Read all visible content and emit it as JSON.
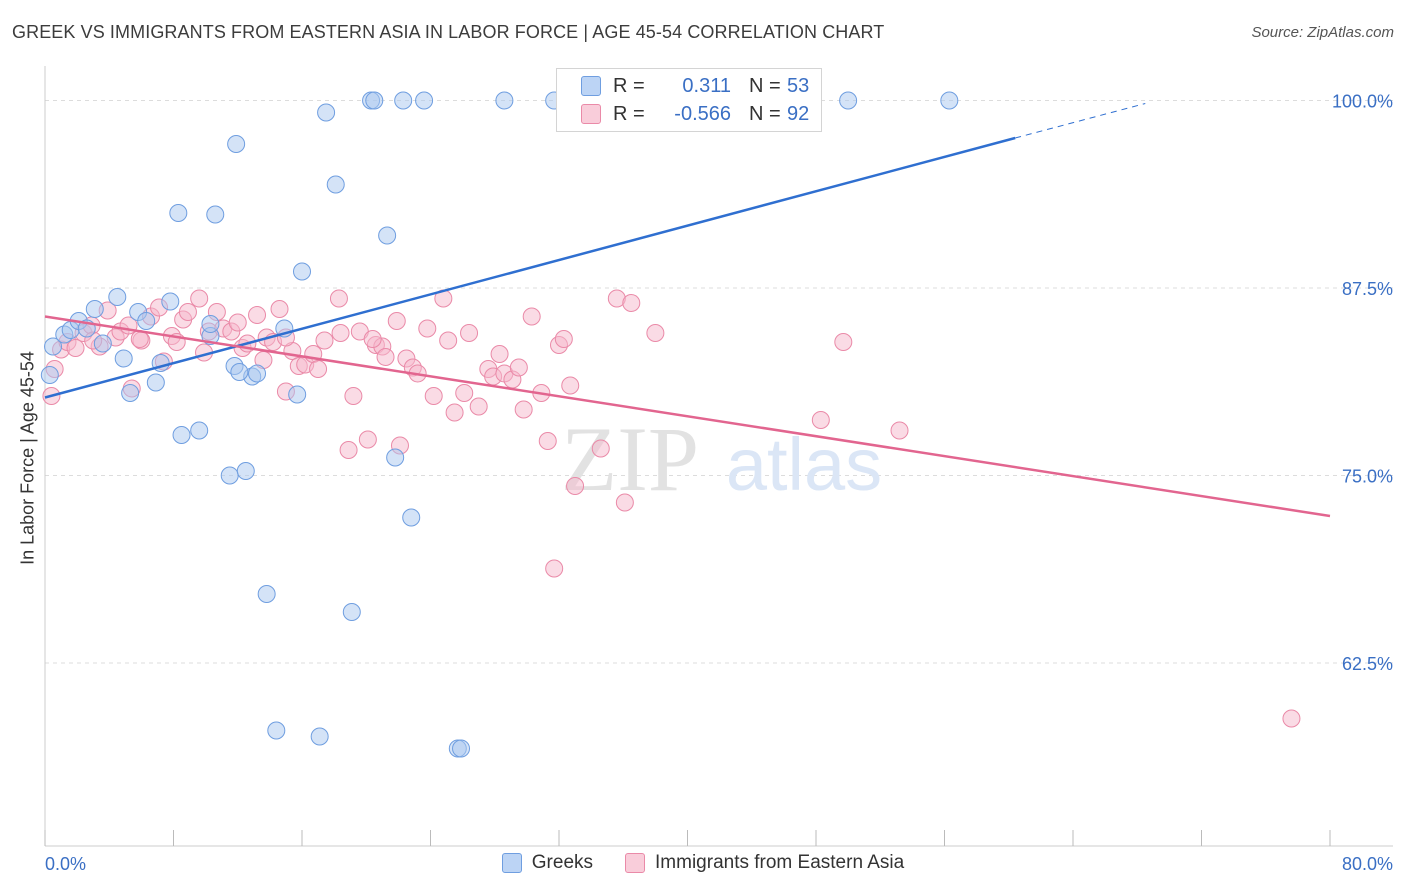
{
  "header": {
    "title": "GREEK VS IMMIGRANTS FROM EASTERN ASIA IN LABOR FORCE | AGE 45-54 CORRELATION CHART",
    "source": "Source: ZipAtlas.com"
  },
  "legend": {
    "rows": [
      {
        "r_label": "R =",
        "r_value": "0.311",
        "n_label": "N =",
        "n_value": "53",
        "color": "#a9c7f0"
      },
      {
        "r_label": "R =",
        "r_value": "-0.566",
        "n_label": "N =",
        "n_value": "92",
        "color": "#f6b8cb"
      }
    ],
    "bottom": [
      {
        "label": "Greeks",
        "color": "#a9c7f0"
      },
      {
        "label": "Immigrants from Eastern Asia",
        "color": "#f6b8cb"
      }
    ]
  },
  "watermark": {
    "zip": "ZIP",
    "atlas": "atlas"
  },
  "chart_data": {
    "type": "scatter",
    "title": "GREEK VS IMMIGRANTS FROM EASTERN ASIA IN LABOR FORCE | AGE 45-54 CORRELATION CHART",
    "ylabel": "In Labor Force | Age 45-54",
    "xlabel": "",
    "xlim": [
      0,
      80
    ],
    "ylim": [
      50.3,
      102.3
    ],
    "x_tick_labels": [
      "0.0%",
      "80.0%"
    ],
    "y_ticks": [
      62.5,
      75.0,
      87.5,
      100.0
    ],
    "y_tick_labels": [
      "62.5%",
      "75.0%",
      "87.5%",
      "100.0%"
    ],
    "grid": true,
    "legend_position": "top-center",
    "series": [
      {
        "name": "Greeks",
        "color": "#a9c7f0",
        "edge": "#6f9ee0",
        "line_color": "#2f6fd0",
        "trend": {
          "x0": 0,
          "y0": 80.2,
          "x1": 60.4,
          "y1": 97.5,
          "dash_to_x": 68.5,
          "dash_to_y": 99.8
        },
        "points": [
          [
            0.5,
            83.6
          ],
          [
            1.2,
            84.4
          ],
          [
            1.6,
            84.7
          ],
          [
            2.1,
            85.3
          ],
          [
            2.6,
            84.8
          ],
          [
            3.1,
            86.1
          ],
          [
            3.6,
            83.8
          ],
          [
            4.5,
            86.9
          ],
          [
            4.9,
            82.8
          ],
          [
            5.3,
            80.5
          ],
          [
            5.8,
            85.9
          ],
          [
            6.3,
            85.3
          ],
          [
            6.9,
            81.2
          ],
          [
            7.2,
            82.5
          ],
          [
            7.8,
            86.6
          ],
          [
            8.3,
            92.5
          ],
          [
            8.5,
            77.7
          ],
          [
            9.6,
            78.0
          ],
          [
            10.3,
            84.3
          ],
          [
            10.3,
            85.1
          ],
          [
            10.6,
            92.4
          ],
          [
            11.5,
            75.0
          ],
          [
            11.8,
            82.3
          ],
          [
            11.9,
            97.1
          ],
          [
            12.5,
            75.3
          ],
          [
            12.9,
            81.6
          ],
          [
            13.2,
            81.8
          ],
          [
            13.8,
            67.1
          ],
          [
            14.4,
            58.0
          ],
          [
            14.9,
            84.8
          ],
          [
            15.7,
            80.4
          ],
          [
            17.1,
            57.6
          ],
          [
            17.5,
            99.2
          ],
          [
            18.1,
            94.4
          ],
          [
            19.1,
            65.9
          ],
          [
            20.3,
            100.0
          ],
          [
            20.5,
            100.0
          ],
          [
            21.3,
            91.0
          ],
          [
            21.8,
            76.2
          ],
          [
            22.3,
            100.0
          ],
          [
            22.8,
            72.2
          ],
          [
            23.6,
            100.0
          ],
          [
            25.7,
            56.8
          ],
          [
            25.9,
            56.8
          ],
          [
            28.6,
            100.0
          ],
          [
            31.7,
            100.0
          ],
          [
            41.0,
            100.0
          ],
          [
            43.7,
            100.0
          ],
          [
            50.0,
            100.0
          ],
          [
            56.3,
            100.0
          ],
          [
            16.0,
            88.6
          ],
          [
            0.3,
            81.7
          ],
          [
            12.1,
            81.9
          ]
        ]
      },
      {
        "name": "Immigrants from Eastern Asia",
        "color": "#f6b8cb",
        "edge": "#ea8aa8",
        "line_color": "#e2658f",
        "trend": {
          "x0": 0,
          "y0": 85.6,
          "x1": 80,
          "y1": 72.3
        },
        "points": [
          [
            0.4,
            80.3
          ],
          [
            0.6,
            82.1
          ],
          [
            1.0,
            83.4
          ],
          [
            1.4,
            83.9
          ],
          [
            1.9,
            83.5
          ],
          [
            2.4,
            84.5
          ],
          [
            2.9,
            85.0
          ],
          [
            3.4,
            83.6
          ],
          [
            3.9,
            86.0
          ],
          [
            4.4,
            84.2
          ],
          [
            4.7,
            84.6
          ],
          [
            5.2,
            85.0
          ],
          [
            5.4,
            80.8
          ],
          [
            6.0,
            84.0
          ],
          [
            6.6,
            85.6
          ],
          [
            7.1,
            86.2
          ],
          [
            7.4,
            82.6
          ],
          [
            7.9,
            84.3
          ],
          [
            8.2,
            83.9
          ],
          [
            8.6,
            85.4
          ],
          [
            8.9,
            85.9
          ],
          [
            9.6,
            86.8
          ],
          [
            9.9,
            83.2
          ],
          [
            10.2,
            84.6
          ],
          [
            10.7,
            85.9
          ],
          [
            11.1,
            84.8
          ],
          [
            11.6,
            84.6
          ],
          [
            12.0,
            85.2
          ],
          [
            12.3,
            83.5
          ],
          [
            12.6,
            83.8
          ],
          [
            13.2,
            85.7
          ],
          [
            13.6,
            82.7
          ],
          [
            13.8,
            84.2
          ],
          [
            14.2,
            83.9
          ],
          [
            14.6,
            86.1
          ],
          [
            15.0,
            80.6
          ],
          [
            15.4,
            83.3
          ],
          [
            15.8,
            82.3
          ],
          [
            16.2,
            82.4
          ],
          [
            16.7,
            83.1
          ],
          [
            17.0,
            82.1
          ],
          [
            17.4,
            84.0
          ],
          [
            18.3,
            86.8
          ],
          [
            18.4,
            84.5
          ],
          [
            18.9,
            76.7
          ],
          [
            19.2,
            80.3
          ],
          [
            19.6,
            84.6
          ],
          [
            20.1,
            77.4
          ],
          [
            20.6,
            83.7
          ],
          [
            21.0,
            83.6
          ],
          [
            21.2,
            82.9
          ],
          [
            21.9,
            85.3
          ],
          [
            22.1,
            77.0
          ],
          [
            22.5,
            82.8
          ],
          [
            22.9,
            82.2
          ],
          [
            23.2,
            81.8
          ],
          [
            23.8,
            84.8
          ],
          [
            24.2,
            80.3
          ],
          [
            24.8,
            86.8
          ],
          [
            25.1,
            84.0
          ],
          [
            25.5,
            79.2
          ],
          [
            26.1,
            80.5
          ],
          [
            26.4,
            84.5
          ],
          [
            27.0,
            79.6
          ],
          [
            27.6,
            82.1
          ],
          [
            27.9,
            81.6
          ],
          [
            28.3,
            83.1
          ],
          [
            28.6,
            81.8
          ],
          [
            29.1,
            81.4
          ],
          [
            29.5,
            82.2
          ],
          [
            29.8,
            79.4
          ],
          [
            30.3,
            85.6
          ],
          [
            30.9,
            80.5
          ],
          [
            31.3,
            77.3
          ],
          [
            31.7,
            68.8
          ],
          [
            32.0,
            83.7
          ],
          [
            32.3,
            84.1
          ],
          [
            32.7,
            81.0
          ],
          [
            33.0,
            74.3
          ],
          [
            34.6,
            76.8
          ],
          [
            35.6,
            86.8
          ],
          [
            36.1,
            73.2
          ],
          [
            36.5,
            86.5
          ],
          [
            38.0,
            84.5
          ],
          [
            48.3,
            78.7
          ],
          [
            49.7,
            83.9
          ],
          [
            53.2,
            78.0
          ],
          [
            77.6,
            58.8
          ],
          [
            5.9,
            84.1
          ],
          [
            3.0,
            84.0
          ],
          [
            15.0,
            84.2
          ],
          [
            20.4,
            84.1
          ]
        ]
      }
    ]
  }
}
